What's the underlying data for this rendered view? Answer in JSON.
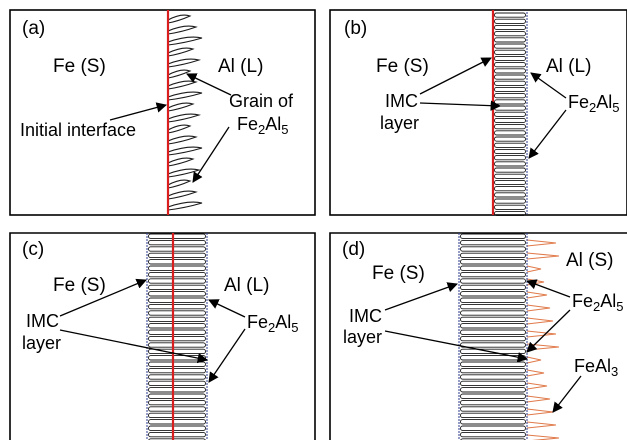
{
  "panels": {
    "a": {
      "tag": "(a)",
      "left_phase": "Fe (S)",
      "right_phase": "Al (L)",
      "interface_label": "Initial interface",
      "grain_label_line1": "Grain of",
      "grain_formula": {
        "el1": "Fe",
        "n1": "2",
        "el2": "Al",
        "n2": "5"
      }
    },
    "b": {
      "tag": "(b)",
      "left_phase": "Fe (S)",
      "right_phase": "Al (L)",
      "imc_line1": "IMC",
      "imc_line2": "layer",
      "formula": {
        "el1": "Fe",
        "n1": "2",
        "el2": "Al",
        "n2": "5"
      }
    },
    "c": {
      "tag": "(c)",
      "left_phase": "Fe (S)",
      "right_phase": "Al (L)",
      "imc_line1": "IMC",
      "imc_line2": "layer",
      "formula": {
        "el1": "Fe",
        "n1": "2",
        "el2": "Al",
        "n2": "5"
      }
    },
    "d": {
      "tag": "(d)",
      "left_phase": "Fe (S)",
      "right_phase": "Al (S)",
      "imc_line1": "IMC",
      "imc_line2": "layer",
      "formula": {
        "el1": "Fe",
        "n1": "2",
        "el2": "Al",
        "n2": "5"
      },
      "formula2": {
        "el1": "Fe",
        "n1": "",
        "el2": "Al",
        "n2": "3"
      }
    }
  },
  "colors": {
    "interface": "#d81e1e",
    "grain_outline": "#1a1a1a",
    "layer_outline": "#2b3a8c",
    "feal3": "#e07a4a",
    "border": "#000000"
  }
}
